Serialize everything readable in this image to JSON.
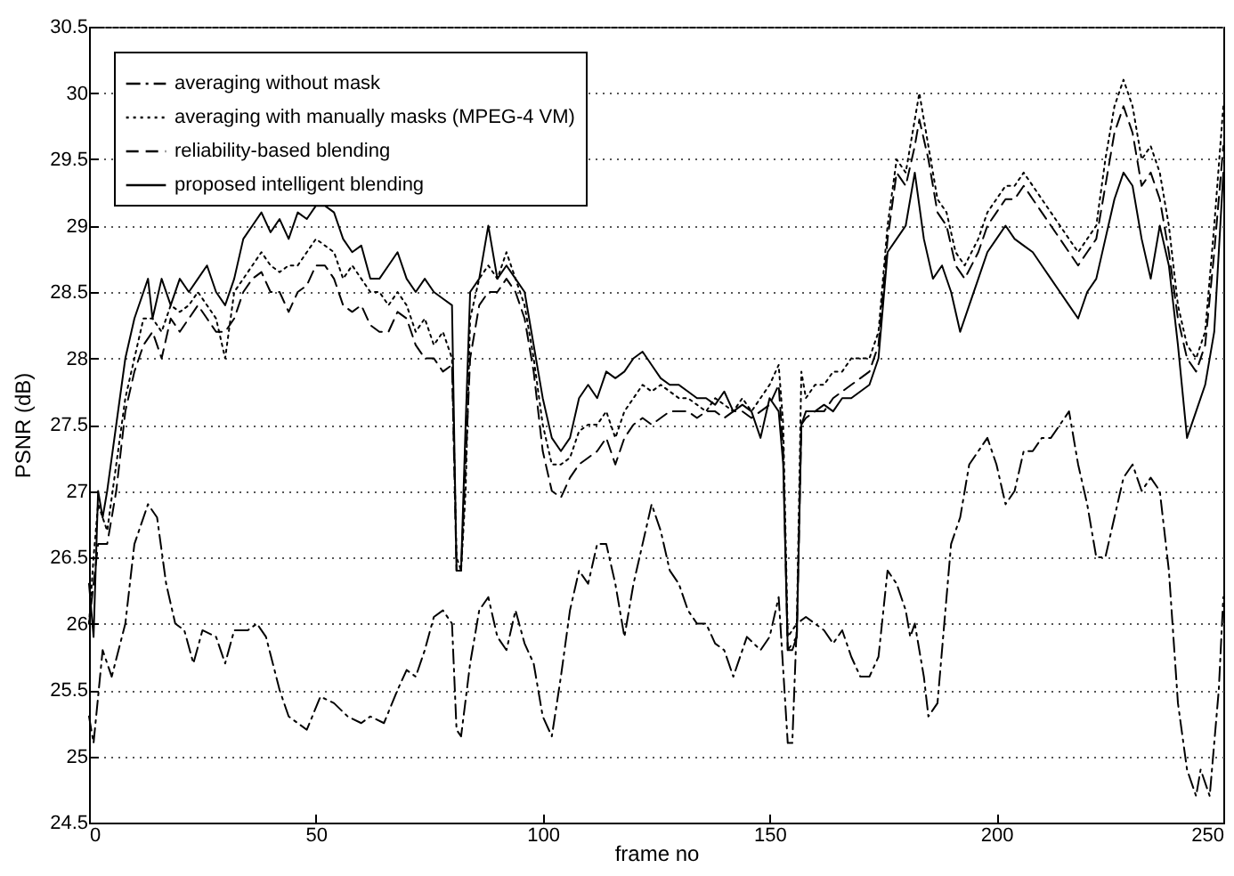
{
  "chart_data": {
    "type": "line",
    "xlabel": "frame no",
    "ylabel": "PSNR (dB)",
    "xlim": [
      0,
      250
    ],
    "xticks": [
      0,
      50,
      100,
      150,
      200,
      250
    ],
    "ylim": [
      24.5,
      30.5
    ],
    "yticks": [
      24.5,
      25,
      25.5,
      26,
      26.5,
      27,
      27.5,
      28,
      28.5,
      29,
      29.5,
      30,
      30.5
    ],
    "grid": "y",
    "legend": "top left",
    "marker": "none",
    "series": [
      {
        "name": "averaging without mask",
        "color": "#000000",
        "line_style": "dashdot",
        "x": [
          0,
          1,
          3,
          5,
          8,
          10,
          13,
          15,
          17,
          19,
          21,
          23,
          25,
          28,
          30,
          32,
          35,
          37,
          39,
          42,
          44,
          48,
          51,
          54,
          57,
          60,
          62,
          65,
          68,
          70,
          72,
          74,
          76,
          78,
          80,
          81,
          82,
          84,
          86,
          88,
          90,
          92,
          94,
          96,
          98,
          100,
          102,
          104,
          106,
          108,
          110,
          112,
          114,
          116,
          118,
          120,
          122,
          124,
          126,
          128,
          130,
          132,
          134,
          136,
          138,
          140,
          142,
          145,
          148,
          150,
          152,
          154,
          155,
          156,
          158,
          160,
          162,
          164,
          166,
          168,
          170,
          172,
          174,
          176,
          178,
          180,
          181,
          182,
          184,
          185,
          187,
          190,
          192,
          194,
          196,
          198,
          200,
          202,
          204,
          206,
          208,
          210,
          212,
          214,
          216,
          218,
          220,
          222,
          224,
          226,
          228,
          230,
          232,
          234,
          236,
          238,
          240,
          242,
          244,
          245,
          247,
          249,
          250
        ],
        "values": [
          25.3,
          25.1,
          25.8,
          25.6,
          26.0,
          26.6,
          26.9,
          26.8,
          26.3,
          26.0,
          25.95,
          25.7,
          25.95,
          25.9,
          25.7,
          25.95,
          25.95,
          26.0,
          25.9,
          25.5,
          25.3,
          25.2,
          25.45,
          25.4,
          25.3,
          25.25,
          25.3,
          25.25,
          25.5,
          25.65,
          25.6,
          25.8,
          26.05,
          26.1,
          26.0,
          25.2,
          25.15,
          25.7,
          26.1,
          26.2,
          25.9,
          25.8,
          26.1,
          25.85,
          25.7,
          25.3,
          25.15,
          25.6,
          26.1,
          26.4,
          26.3,
          26.6,
          26.6,
          26.3,
          25.9,
          26.3,
          26.6,
          26.9,
          26.7,
          26.4,
          26.3,
          26.1,
          26.0,
          26.0,
          25.85,
          25.8,
          25.6,
          25.9,
          25.8,
          25.9,
          26.2,
          25.1,
          25.1,
          26.0,
          26.05,
          26.0,
          25.95,
          25.85,
          25.95,
          25.75,
          25.6,
          25.6,
          25.75,
          26.4,
          26.3,
          26.1,
          25.9,
          26.0,
          25.6,
          25.3,
          25.4,
          26.6,
          26.8,
          27.2,
          27.3,
          27.4,
          27.2,
          26.9,
          27.0,
          27.3,
          27.3,
          27.4,
          27.4,
          27.5,
          27.6,
          27.2,
          26.9,
          26.5,
          26.5,
          26.8,
          27.1,
          27.2,
          27.0,
          27.1,
          27.0,
          26.4,
          25.4,
          24.9,
          24.7,
          24.9,
          24.7,
          25.5,
          26.2
        ]
      },
      {
        "name": "averaging with manually masks (MPEG-4 VM)",
        "color": "#000000",
        "line_style": "dotted",
        "x": [
          0,
          1,
          2,
          4,
          6,
          8,
          10,
          12,
          14,
          16,
          18,
          20,
          22,
          24,
          26,
          28,
          30,
          32,
          34,
          36,
          38,
          40,
          42,
          44,
          46,
          48,
          50,
          52,
          54,
          56,
          58,
          60,
          62,
          64,
          66,
          68,
          70,
          72,
          74,
          76,
          78,
          80,
          81,
          82,
          83,
          84,
          86,
          88,
          90,
          92,
          94,
          96,
          98,
          100,
          102,
          104,
          106,
          108,
          110,
          112,
          114,
          116,
          118,
          120,
          122,
          124,
          126,
          128,
          130,
          132,
          134,
          136,
          138,
          140,
          142,
          144,
          146,
          148,
          150,
          152,
          153,
          154,
          156,
          157,
          158,
          160,
          162,
          164,
          166,
          168,
          170,
          172,
          174,
          176,
          178,
          180,
          182,
          183,
          185,
          187,
          189,
          191,
          193,
          196,
          198,
          200,
          202,
          204,
          206,
          208,
          210,
          212,
          214,
          216,
          218,
          220,
          222,
          224,
          226,
          228,
          230,
          232,
          234,
          236,
          238,
          240,
          242,
          244,
          246,
          248,
          250
        ],
        "values": [
          26.0,
          26.5,
          26.9,
          26.7,
          27.2,
          27.7,
          28.0,
          28.3,
          28.3,
          28.2,
          28.4,
          28.35,
          28.4,
          28.5,
          28.4,
          28.3,
          28.0,
          28.5,
          28.6,
          28.7,
          28.8,
          28.7,
          28.65,
          28.7,
          28.7,
          28.8,
          28.9,
          28.85,
          28.8,
          28.6,
          28.7,
          28.6,
          28.5,
          28.5,
          28.4,
          28.5,
          28.4,
          28.2,
          28.3,
          28.1,
          28.2,
          28.0,
          26.5,
          26.4,
          27.0,
          28.3,
          28.6,
          28.7,
          28.6,
          28.8,
          28.6,
          28.4,
          28.0,
          27.5,
          27.2,
          27.2,
          27.25,
          27.45,
          27.5,
          27.5,
          27.6,
          27.4,
          27.6,
          27.7,
          27.8,
          27.75,
          27.8,
          27.75,
          27.7,
          27.7,
          27.65,
          27.6,
          27.7,
          27.65,
          27.6,
          27.7,
          27.6,
          27.7,
          27.8,
          27.95,
          27.5,
          25.9,
          26.0,
          27.9,
          27.7,
          27.8,
          27.8,
          27.9,
          27.9,
          28.0,
          28.0,
          28.0,
          28.2,
          29.0,
          29.5,
          29.4,
          29.8,
          30.0,
          29.6,
          29.2,
          29.1,
          28.8,
          28.7,
          28.9,
          29.1,
          29.2,
          29.3,
          29.3,
          29.4,
          29.3,
          29.2,
          29.1,
          29.0,
          28.9,
          28.8,
          28.9,
          29.0,
          29.5,
          29.9,
          30.1,
          29.9,
          29.5,
          29.6,
          29.4,
          29.0,
          28.4,
          28.1,
          28.0,
          28.2,
          29.0,
          29.9
        ]
      },
      {
        "name": "reliability-based blending",
        "color": "#000000",
        "line_style": "dashed",
        "x": [
          0,
          2,
          4,
          6,
          8,
          10,
          12,
          14,
          16,
          18,
          20,
          22,
          24,
          26,
          28,
          30,
          32,
          34,
          36,
          38,
          40,
          42,
          44,
          46,
          48,
          50,
          52,
          54,
          56,
          58,
          60,
          62,
          64,
          66,
          68,
          70,
          72,
          74,
          76,
          78,
          80,
          81,
          82,
          84,
          86,
          88,
          90,
          92,
          94,
          96,
          98,
          100,
          102,
          104,
          106,
          108,
          110,
          112,
          114,
          116,
          118,
          120,
          122,
          124,
          126,
          128,
          130,
          132,
          134,
          136,
          138,
          140,
          142,
          144,
          146,
          148,
          150,
          152,
          153,
          154,
          156,
          157,
          158,
          160,
          162,
          164,
          166,
          168,
          170,
          172,
          174,
          176,
          178,
          180,
          182,
          183,
          185,
          187,
          189,
          191,
          193,
          196,
          198,
          200,
          202,
          204,
          206,
          208,
          210,
          212,
          214,
          216,
          218,
          220,
          222,
          224,
          226,
          228,
          230,
          232,
          234,
          236,
          238,
          240,
          242,
          244,
          246,
          248,
          250
        ],
        "values": [
          26.0,
          26.6,
          26.6,
          27.0,
          27.6,
          27.9,
          28.1,
          28.2,
          28.0,
          28.3,
          28.2,
          28.3,
          28.4,
          28.3,
          28.2,
          28.2,
          28.3,
          28.5,
          28.6,
          28.65,
          28.5,
          28.5,
          28.35,
          28.5,
          28.55,
          28.7,
          28.7,
          28.6,
          28.4,
          28.35,
          28.4,
          28.25,
          28.2,
          28.2,
          28.35,
          28.3,
          28.1,
          28.0,
          28.0,
          27.9,
          27.95,
          26.4,
          26.4,
          28.0,
          28.4,
          28.5,
          28.5,
          28.6,
          28.5,
          28.3,
          27.9,
          27.3,
          27.0,
          26.95,
          27.1,
          27.2,
          27.25,
          27.3,
          27.4,
          27.2,
          27.4,
          27.5,
          27.55,
          27.5,
          27.55,
          27.6,
          27.6,
          27.6,
          27.55,
          27.6,
          27.6,
          27.55,
          27.6,
          27.6,
          27.55,
          27.6,
          27.65,
          27.8,
          27.3,
          25.8,
          25.9,
          27.5,
          27.55,
          27.6,
          27.6,
          27.7,
          27.75,
          27.8,
          27.85,
          27.9,
          28.1,
          28.9,
          29.4,
          29.3,
          29.6,
          29.8,
          29.5,
          29.1,
          29.0,
          28.7,
          28.6,
          28.8,
          29.0,
          29.1,
          29.2,
          29.2,
          29.3,
          29.2,
          29.1,
          29.0,
          28.9,
          28.8,
          28.7,
          28.8,
          28.9,
          29.3,
          29.7,
          29.9,
          29.7,
          29.3,
          29.4,
          29.2,
          28.8,
          28.3,
          28.0,
          27.9,
          28.1,
          28.8,
          29.6
        ]
      },
      {
        "name": "proposed intelligent blending",
        "color": "#000000",
        "line_style": "solid",
        "x": [
          0,
          1,
          2,
          3,
          4,
          6,
          8,
          10,
          12,
          13,
          14,
          16,
          18,
          20,
          22,
          24,
          26,
          28,
          30,
          32,
          34,
          36,
          38,
          40,
          42,
          44,
          46,
          48,
          50,
          52,
          54,
          56,
          58,
          60,
          62,
          64,
          66,
          68,
          70,
          72,
          74,
          76,
          78,
          80,
          81,
          82,
          83,
          84,
          86,
          88,
          90,
          92,
          94,
          96,
          98,
          100,
          102,
          104,
          106,
          108,
          110,
          112,
          114,
          116,
          118,
          120,
          122,
          124,
          126,
          128,
          130,
          132,
          134,
          136,
          138,
          140,
          142,
          144,
          146,
          148,
          150,
          152,
          153,
          154,
          155,
          156,
          157,
          158,
          160,
          162,
          164,
          166,
          168,
          170,
          172,
          174,
          176,
          178,
          180,
          182,
          184,
          186,
          188,
          190,
          192,
          194,
          196,
          198,
          200,
          202,
          204,
          206,
          208,
          210,
          212,
          214,
          216,
          218,
          220,
          222,
          224,
          226,
          228,
          230,
          232,
          234,
          236,
          238,
          240,
          242,
          244,
          246,
          248,
          250
        ],
        "values": [
          26.3,
          25.9,
          27.0,
          26.8,
          27.0,
          27.5,
          28.0,
          28.3,
          28.5,
          28.6,
          28.3,
          28.6,
          28.4,
          28.6,
          28.5,
          28.6,
          28.7,
          28.5,
          28.4,
          28.6,
          28.9,
          29.0,
          29.1,
          28.95,
          29.05,
          28.9,
          29.1,
          29.05,
          29.15,
          29.15,
          29.1,
          28.9,
          28.8,
          28.85,
          28.6,
          28.6,
          28.7,
          28.8,
          28.6,
          28.5,
          28.6,
          28.5,
          28.45,
          28.4,
          26.4,
          26.4,
          27.5,
          28.5,
          28.6,
          29.0,
          28.6,
          28.7,
          28.6,
          28.5,
          28.1,
          27.7,
          27.4,
          27.3,
          27.4,
          27.7,
          27.8,
          27.7,
          27.9,
          27.85,
          27.9,
          28.0,
          28.05,
          27.95,
          27.85,
          27.8,
          27.8,
          27.75,
          27.7,
          27.7,
          27.65,
          27.75,
          27.6,
          27.65,
          27.6,
          27.4,
          27.7,
          27.6,
          27.2,
          25.8,
          25.8,
          25.9,
          27.5,
          27.6,
          27.6,
          27.65,
          27.6,
          27.7,
          27.7,
          27.75,
          27.8,
          28.0,
          28.8,
          28.9,
          29.0,
          29.4,
          28.9,
          28.6,
          28.7,
          28.5,
          28.2,
          28.4,
          28.6,
          28.8,
          28.9,
          29.0,
          28.9,
          28.85,
          28.8,
          28.7,
          28.6,
          28.5,
          28.4,
          28.3,
          28.5,
          28.6,
          28.9,
          29.2,
          29.4,
          29.3,
          28.9,
          28.6,
          29.0,
          28.7,
          28.1,
          27.4,
          27.6,
          27.8,
          28.2,
          29.4
        ]
      }
    ]
  }
}
